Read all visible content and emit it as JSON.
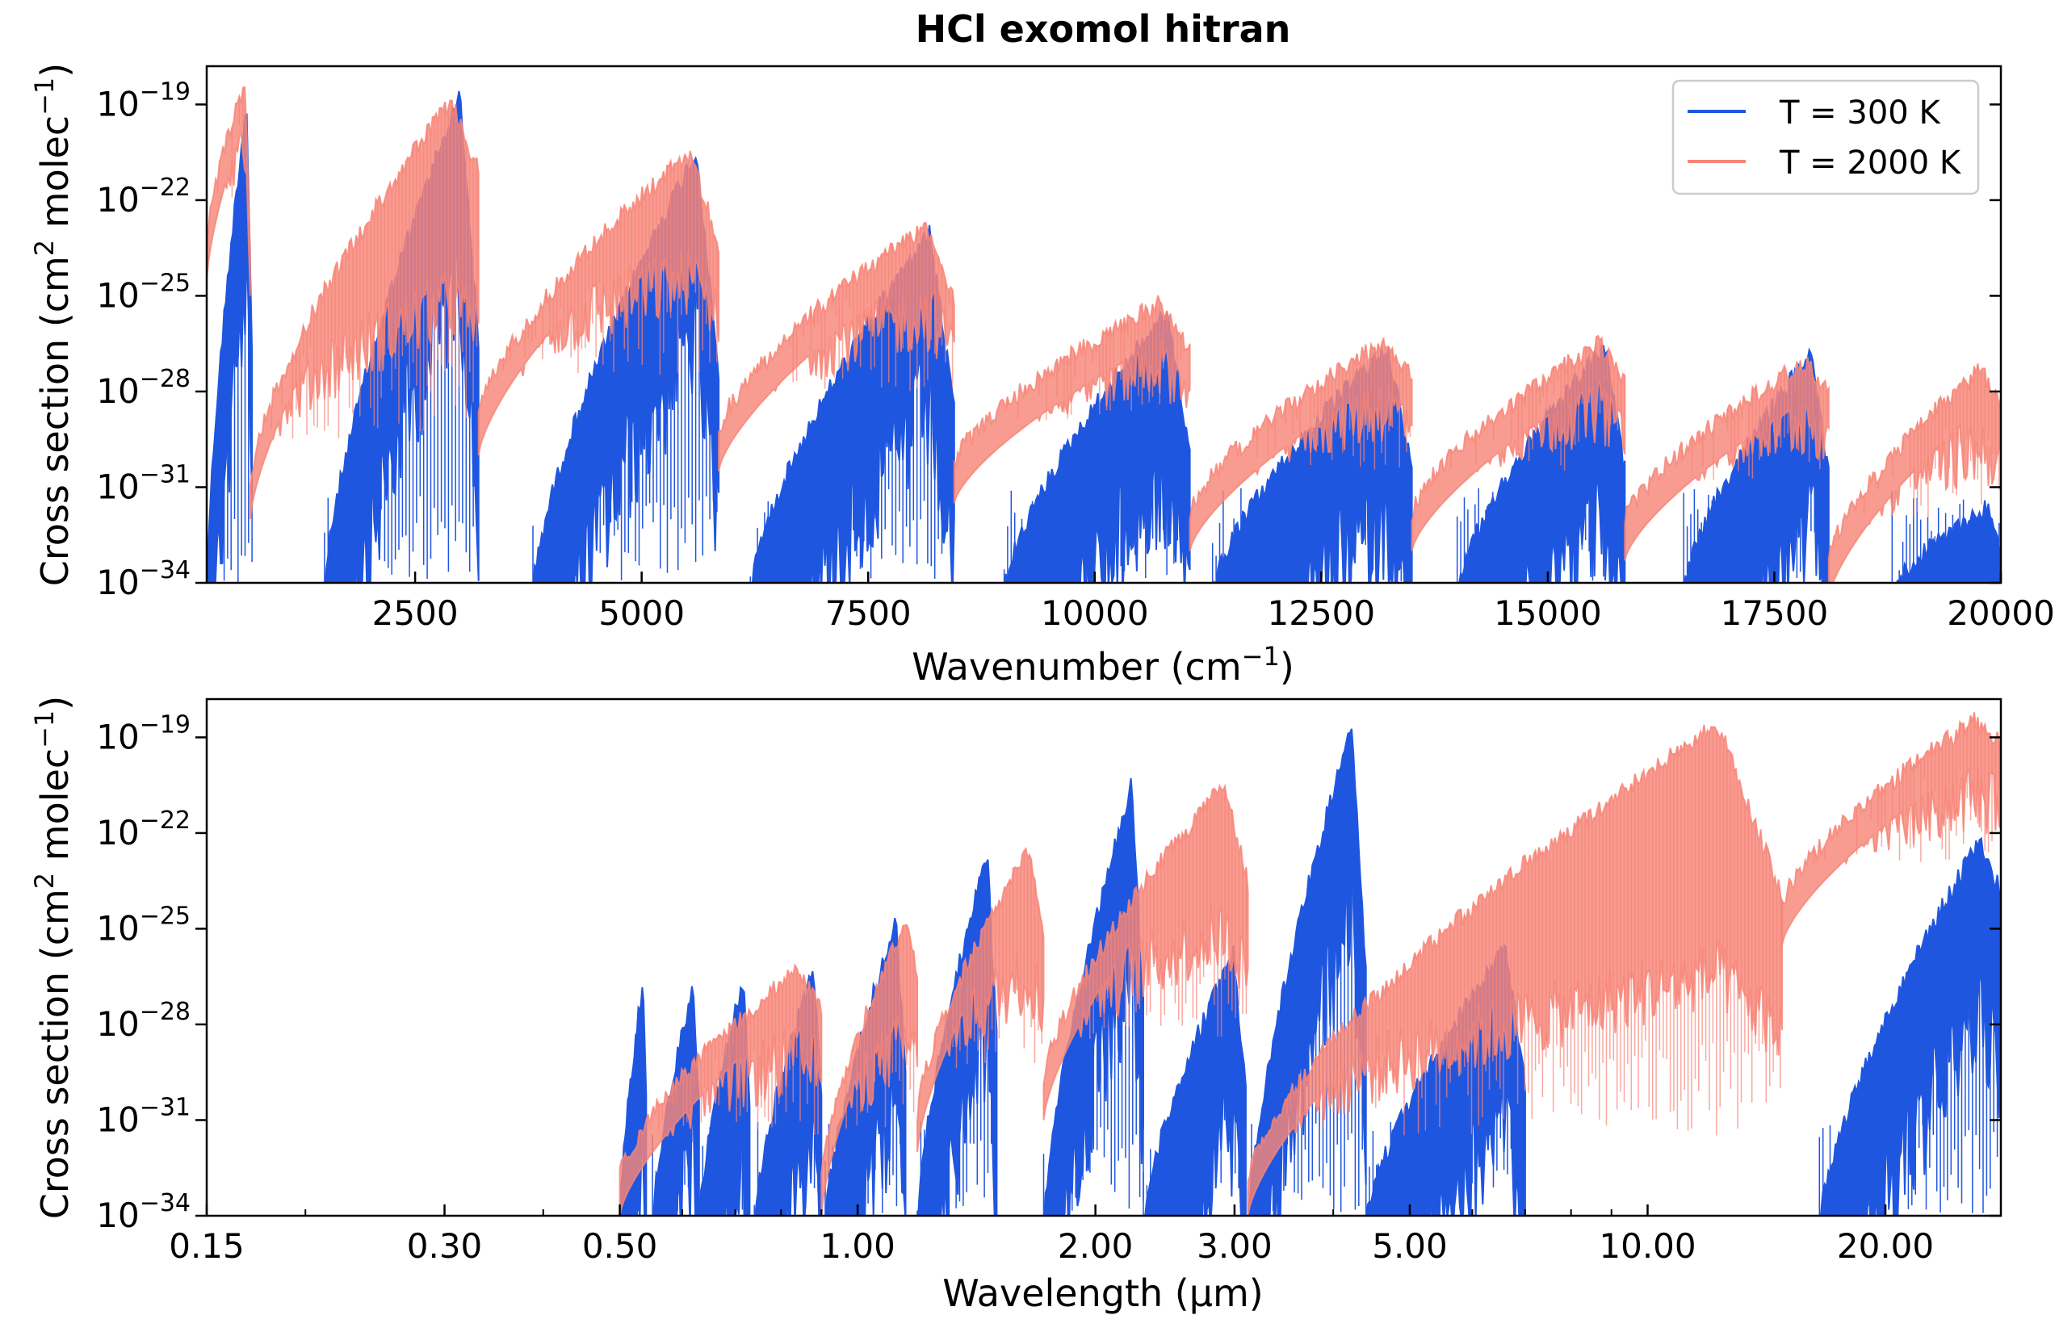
{
  "figure": {
    "title": "HCl exomol hitran"
  },
  "chart_data": [
    {
      "type": "line",
      "panel": "top",
      "title": "HCl exomol hitran",
      "xlabel": "Wavenumber (cm",
      "xlabel_sup": "−1",
      "xlabel_tail": ")",
      "ylabel": "Cross section (cm",
      "ylabel_sup1": "2",
      "ylabel_mid": " molec",
      "ylabel_sup2": "−1",
      "ylabel_tail": ")",
      "xscale": "linear",
      "yscale": "log",
      "xlim": [
        200,
        20000
      ],
      "ylim_exp": [
        -34,
        -17.8
      ],
      "xticks": [
        {
          "value": 2500,
          "label": "2500"
        },
        {
          "value": 5000,
          "label": "5000"
        },
        {
          "value": 7500,
          "label": "7500"
        },
        {
          "value": 10000,
          "label": "10000"
        },
        {
          "value": 12500,
          "label": "12500"
        },
        {
          "value": 15000,
          "label": "15000"
        },
        {
          "value": 17500,
          "label": "17500"
        },
        {
          "value": 20000,
          "label": "20000"
        }
      ],
      "yticks": [
        {
          "exp": -19,
          "base": "10",
          "sup": "−19"
        },
        {
          "exp": -22,
          "base": "10",
          "sup": "−22"
        },
        {
          "exp": -25,
          "base": "10",
          "sup": "−25"
        },
        {
          "exp": -28,
          "base": "10",
          "sup": "−28"
        },
        {
          "exp": -31,
          "base": "10",
          "sup": "−31"
        },
        {
          "exp": -34,
          "base": "10",
          "sup": "−34"
        }
      ],
      "legend": {
        "placement": "top-right",
        "entries": [
          {
            "label": "T = 300 K",
            "color": "#1f56e0"
          },
          {
            "label": "T = 2000 K",
            "color": "#f78578"
          }
        ]
      },
      "series": [
        {
          "name": "T = 300 K",
          "color": "#1f56e0",
          "bands": [
            {
              "start": 200,
              "end": 700,
              "peak": -18.6,
              "lo": -34,
              "fall": -34
            },
            {
              "start": 1500,
              "end": 3200,
              "peak": -18.4,
              "lo": -34,
              "fall": -34
            },
            {
              "start": 3800,
              "end": 5850,
              "peak": -20.2,
              "lo": -34,
              "fall": -34
            },
            {
              "start": 6200,
              "end": 8450,
              "peak": -22.7,
              "lo": -34,
              "fall": -34
            },
            {
              "start": 9000,
              "end": 11050,
              "peak": -25.2,
              "lo": -34,
              "fall": -34
            },
            {
              "start": 11300,
              "end": 13500,
              "peak": -26.3,
              "lo": -34,
              "fall": -34
            },
            {
              "start": 14000,
              "end": 15850,
              "peak": -26.3,
              "lo": -34,
              "fall": -34
            },
            {
              "start": 16500,
              "end": 18100,
              "peak": -26.5,
              "lo": -34,
              "fall": -34
            },
            {
              "start": 18800,
              "end": 20000,
              "peak": -31.3,
              "lo": -34,
              "fall": -34
            }
          ]
        },
        {
          "name": "T = 2000 K",
          "color": "#f78578",
          "bands": [
            {
              "start": 200,
              "end": 680,
              "peak": -18.0,
              "lo": -23,
              "fall": -29
            },
            {
              "start": 680,
              "end": 3200,
              "peak": -18.6,
              "lo": -30.5,
              "fall": -23
            },
            {
              "start": 3200,
              "end": 5850,
              "peak": -20.2,
              "lo": -28.5,
              "fall": -26
            },
            {
              "start": 5850,
              "end": 8450,
              "peak": -22.5,
              "lo": -29,
              "fall": -27
            },
            {
              "start": 8450,
              "end": 11050,
              "peak": -24.9,
              "lo": -30,
              "fall": -28
            },
            {
              "start": 11050,
              "end": 13500,
              "peak": -26.1,
              "lo": -31.5,
              "fall": -28.5
            },
            {
              "start": 13500,
              "end": 15850,
              "peak": -26.2,
              "lo": -31.5,
              "fall": -28.5
            },
            {
              "start": 15850,
              "end": 18100,
              "peak": -26.8,
              "lo": -31.8,
              "fall": -28.5
            },
            {
              "start": 18100,
              "end": 20000,
              "peak": -27.0,
              "lo": -33,
              "fall": -29
            }
          ]
        }
      ]
    },
    {
      "type": "line",
      "panel": "bottom",
      "xlabel": "Wavelength (μm)",
      "ylabel": "Cross section (cm",
      "ylabel_sup1": "2",
      "ylabel_mid": " molec",
      "ylabel_sup2": "−1",
      "ylabel_tail": ")",
      "xscale": "log",
      "yscale": "log",
      "xlim": [
        0.15,
        28
      ],
      "ylim_exp": [
        -34,
        -17.8
      ],
      "xticks": [
        {
          "value": 0.15,
          "label": "0.15"
        },
        {
          "value": 0.3,
          "label": "0.30"
        },
        {
          "value": 0.5,
          "label": "0.50"
        },
        {
          "value": 1.0,
          "label": "1.00"
        },
        {
          "value": 2.0,
          "label": "2.00"
        },
        {
          "value": 3.0,
          "label": "3.00"
        },
        {
          "value": 5.0,
          "label": "5.00"
        },
        {
          "value": 10.0,
          "label": "10.00"
        },
        {
          "value": 20.0,
          "label": "20.00"
        }
      ],
      "yticks": [
        {
          "exp": -19,
          "base": "10",
          "sup": "−19"
        },
        {
          "exp": -22,
          "base": "10",
          "sup": "−22"
        },
        {
          "exp": -25,
          "base": "10",
          "sup": "−25"
        },
        {
          "exp": -28,
          "base": "10",
          "sup": "−28"
        },
        {
          "exp": -31,
          "base": "10",
          "sup": "−31"
        },
        {
          "exp": -34,
          "base": "10",
          "sup": "−34"
        }
      ],
      "series": [
        {
          "name": "T = 300 K",
          "color": "#1f56e0",
          "bands": [
            {
              "start": 0.5,
              "end": 0.54,
              "peak": -26.3,
              "lo": -34,
              "fall": -34
            },
            {
              "start": 0.55,
              "end": 0.63,
              "peak": -26.5,
              "lo": -34,
              "fall": -34
            },
            {
              "start": 0.63,
              "end": 0.73,
              "peak": -26.3,
              "lo": -34,
              "fall": -34
            },
            {
              "start": 0.74,
              "end": 0.9,
              "peak": -26.0,
              "lo": -34,
              "fall": -34
            },
            {
              "start": 0.91,
              "end": 1.15,
              "peak": -24.5,
              "lo": -34,
              "fall": -34
            },
            {
              "start": 1.19,
              "end": 1.5,
              "peak": -22.3,
              "lo": -34,
              "fall": -34
            },
            {
              "start": 1.72,
              "end": 2.3,
              "peak": -20.2,
              "lo": -34,
              "fall": -34
            },
            {
              "start": 2.3,
              "end": 3.1,
              "peak": -25.5,
              "lo": -34,
              "fall": -34
            },
            {
              "start": 3.12,
              "end": 4.4,
              "peak": -18.4,
              "lo": -34,
              "fall": -34
            },
            {
              "start": 4.4,
              "end": 7.0,
              "peak": -25.3,
              "lo": -34,
              "fall": -34
            },
            {
              "start": 16.5,
              "end": 28.0,
              "peak": -22.0,
              "lo": -34,
              "fall": -25
            }
          ]
        },
        {
          "name": "T = 2000 K",
          "color": "#f78578",
          "bands": [
            {
              "start": 0.5,
              "end": 0.9,
              "peak": -26.0,
              "lo": -32.5,
              "fall": -28.5
            },
            {
              "start": 0.9,
              "end": 1.19,
              "peak": -24.5,
              "lo": -32.5,
              "fall": -27.5
            },
            {
              "start": 1.19,
              "end": 1.72,
              "peak": -22.3,
              "lo": -30.5,
              "fall": -27.5
            },
            {
              "start": 1.72,
              "end": 3.12,
              "peak": -20.2,
              "lo": -29.5,
              "fall": -26.3
            },
            {
              "start": 3.12,
              "end": 14.8,
              "peak": -18.3,
              "lo": -32.5,
              "fall": -29
            },
            {
              "start": 14.8,
              "end": 28.0,
              "peak": -18.2,
              "lo": -24,
              "fall": -19.5
            }
          ]
        }
      ]
    }
  ]
}
